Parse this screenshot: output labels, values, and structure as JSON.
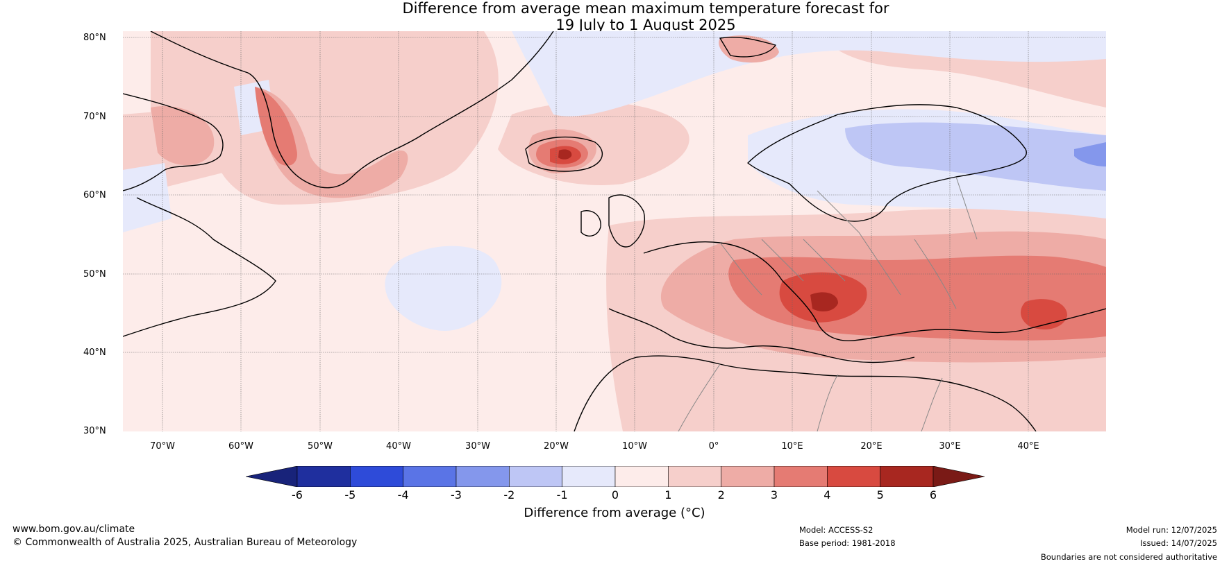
{
  "title": {
    "line1": "Difference from average mean maximum temperature forecast for",
    "line2": "19 July to 1 August 2025"
  },
  "map": {
    "lat_labels": [
      "80°N",
      "70°N",
      "60°N",
      "50°N",
      "40°N",
      "30°N"
    ],
    "lon_labels": [
      "70°W",
      "60°W",
      "50°W",
      "40°W",
      "30°W",
      "20°W",
      "10°W",
      "0°",
      "10°E",
      "20°E",
      "30°E",
      "40°E"
    ]
  },
  "colorbar": {
    "ticks": [
      "-6",
      "-5",
      "-4",
      "-3",
      "-2",
      "-1",
      "0",
      "1",
      "2",
      "3",
      "4",
      "5",
      "6"
    ],
    "colors": [
      "#1f2f9e",
      "#2e4bd9",
      "#5a74e6",
      "#8497ec",
      "#bec6f5",
      "#e6e9fb",
      "#fdecea",
      "#f6cfcb",
      "#eeaca6",
      "#e57b73",
      "#d84a40",
      "#a82720"
    ],
    "extend_low_color": "#18237a",
    "extend_high_color": "#7a1a16",
    "label": "Difference from average (°C)"
  },
  "footer": {
    "url": "www.bom.gov.au/climate",
    "copyright": "© Commonwealth of Australia 2025, Australian Bureau of Meteorology",
    "model": "Model: ACCESS-S2",
    "base_period": "Base period: 1981-2018",
    "model_run": "Model run: 12/07/2025",
    "issued": "Issued: 14/07/2025",
    "disclaimer": "Boundaries are not considered authoritative"
  }
}
